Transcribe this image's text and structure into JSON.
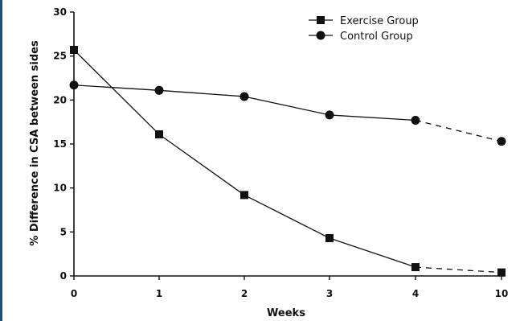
{
  "chart_data": {
    "type": "line",
    "xlabel": "Weeks",
    "ylabel": "% Difference in CSA between sides",
    "categories": [
      "0",
      "1",
      "2",
      "3",
      "4",
      "10"
    ],
    "ylim": [
      0,
      30
    ],
    "yticks": [
      "0",
      "5",
      "10",
      "15",
      "20",
      "25",
      "30"
    ],
    "series": [
      {
        "name": "Exercise Group",
        "marker": "square",
        "values": [
          25.7,
          16.1,
          9.2,
          4.3,
          1.0,
          0.4
        ]
      },
      {
        "name": "Control Group",
        "marker": "circle",
        "values": [
          21.7,
          21.1,
          20.4,
          18.3,
          17.7,
          15.3
        ]
      }
    ],
    "dashed_from_category_index": 4,
    "legend": "top-right",
    "grid": false
  }
}
